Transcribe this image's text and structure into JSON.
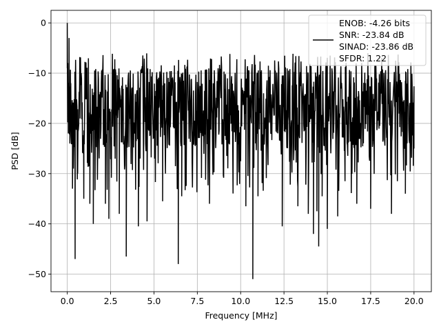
{
  "chart_data": {
    "type": "line",
    "title": "",
    "xlabel": "Frequency [MHz]",
    "ylabel": "PSD [dB]",
    "xlim": [
      -0.94,
      21.0
    ],
    "ylim": [
      -53.5,
      2.5
    ],
    "xticks": [
      0.0,
      2.5,
      5.0,
      7.5,
      10.0,
      12.5,
      15.0,
      17.5,
      20.0
    ],
    "xtick_labels": [
      "0.0",
      "2.5",
      "5.0",
      "7.5",
      "10.0",
      "12.5",
      "15.0",
      "17.5",
      "20.0"
    ],
    "yticks": [
      0,
      -10,
      -20,
      -30,
      -40,
      -50
    ],
    "ytick_labels": [
      "0",
      "−10",
      "−20",
      "−30",
      "−40",
      "−50"
    ],
    "grid": true,
    "legend_position": "top-right",
    "legend_lines": [
      "ENOB: -4.26 bits",
      "SNR: -23.84 dB",
      "SINAD: -23.86 dB",
      "SFDR: 1.22"
    ],
    "series": [
      {
        "color": "#000000",
        "x_start": 0.0,
        "x_end": 20.0,
        "band": {
          "typical_low": -25,
          "typical_high": -9,
          "upper_peak": -6
        },
        "x": [
          0.0,
          0.03,
          0.06,
          0.1,
          0.15,
          0.2,
          0.3,
          0.35,
          0.45,
          0.6,
          0.95,
          1.3,
          1.5,
          2.2,
          2.4,
          3.0,
          3.4,
          4.1,
          4.6,
          5.5,
          6.4,
          6.6,
          8.2,
          10.3,
          10.7,
          11.0,
          12.4,
          13.3,
          13.9,
          14.2,
          14.4,
          14.5,
          14.7,
          15.0,
          15.6,
          16.7,
          17.5,
          18.7,
          19.5,
          20.0
        ],
        "y": [
          0.0,
          -8.0,
          -22.0,
          -3.0,
          -24.0,
          -12.0,
          -33.0,
          -29.0,
          -47.0,
          -30.0,
          -35.0,
          -36.0,
          -40.0,
          -36.0,
          -39.0,
          -38.0,
          -46.5,
          -40.5,
          -39.5,
          -35.5,
          -48.0,
          -34.5,
          -36.0,
          -36.5,
          -51.0,
          -34.5,
          -40.5,
          -36.5,
          -38.0,
          -42.0,
          -37.5,
          -44.5,
          -34.5,
          -41.0,
          -38.5,
          -36.0,
          -37.0,
          -38.0,
          -34.0,
          -25.0
        ]
      }
    ]
  }
}
